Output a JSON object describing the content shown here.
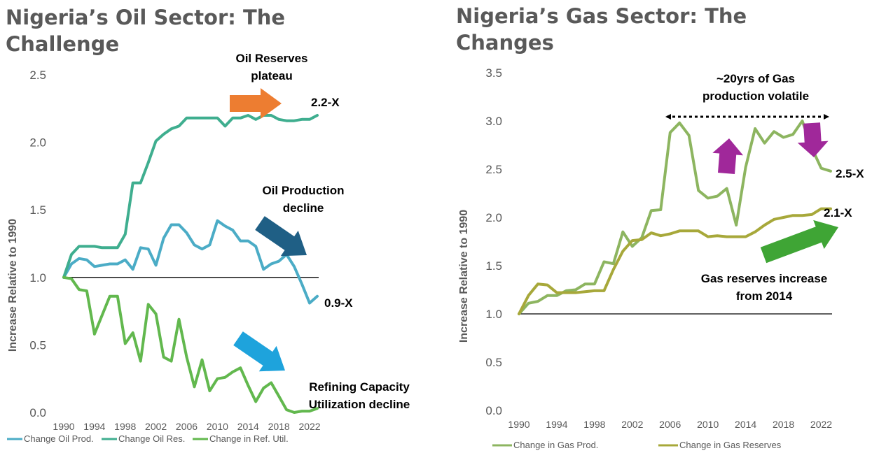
{
  "chart_data": [
    {
      "type": "line",
      "title": "Nigeria’s Oil Sector: The Challenge",
      "xlabel": "",
      "ylabel": "Increase Relative to 1990",
      "ylim": [
        0,
        2.5
      ],
      "xlim": [
        1990,
        2023
      ],
      "y_ticks": [
        "0.0",
        "0.5",
        "1.0",
        "1.5",
        "2.0",
        "2.5"
      ],
      "x_ticks": [
        "1990",
        "1994",
        "1998",
        "2002",
        "2006",
        "2010",
        "2014",
        "2018",
        "2022"
      ],
      "reference_line": 1.0,
      "grid": false,
      "legend_position": "bottom",
      "x": [
        1990,
        1991,
        1992,
        1993,
        1994,
        1995,
        1996,
        1997,
        1998,
        1999,
        2000,
        2001,
        2002,
        2003,
        2004,
        2005,
        2006,
        2007,
        2008,
        2009,
        2010,
        2011,
        2012,
        2013,
        2014,
        2015,
        2016,
        2017,
        2018,
        2019,
        2020,
        2021,
        2022,
        2023
      ],
      "series": [
        {
          "name": "Change Oil Prod.",
          "color": "#4bacc6",
          "values": [
            1.0,
            1.1,
            1.14,
            1.13,
            1.08,
            1.09,
            1.1,
            1.1,
            1.13,
            1.06,
            1.22,
            1.21,
            1.09,
            1.29,
            1.39,
            1.39,
            1.33,
            1.24,
            1.21,
            1.24,
            1.42,
            1.38,
            1.35,
            1.27,
            1.27,
            1.23,
            1.06,
            1.1,
            1.12,
            1.17,
            1.08,
            0.95,
            0.81,
            0.86
          ]
        },
        {
          "name": "Change Oil Res.",
          "color": "#3fae8f",
          "values": [
            1.0,
            1.17,
            1.23,
            1.23,
            1.23,
            1.22,
            1.22,
            1.22,
            1.32,
            1.7,
            1.7,
            1.85,
            2.01,
            2.06,
            2.1,
            2.12,
            2.18,
            2.18,
            2.18,
            2.18,
            2.18,
            2.12,
            2.18,
            2.18,
            2.2,
            2.17,
            2.2,
            2.2,
            2.17,
            2.16,
            2.16,
            2.17,
            2.17,
            2.2
          ]
        },
        {
          "name": "Change in Ref. Util.",
          "color": "#62b84e",
          "values": [
            1.0,
            0.99,
            0.91,
            0.9,
            0.58,
            0.72,
            0.86,
            0.86,
            0.51,
            0.59,
            0.38,
            0.8,
            0.73,
            0.41,
            0.38,
            0.69,
            0.41,
            0.19,
            0.39,
            0.16,
            0.25,
            0.26,
            0.3,
            0.33,
            0.2,
            0.08,
            0.18,
            0.22,
            0.12,
            0.02,
            0.0,
            0.01,
            0.01,
            0.03
          ]
        }
      ],
      "annotations": [
        {
          "lines": [
            "Oil Reserves",
            "plateau"
          ]
        },
        {
          "lines": [
            "2.2-X"
          ]
        },
        {
          "lines": [
            "Oil Production",
            "decline"
          ]
        },
        {
          "lines": [
            "0.9-X"
          ]
        },
        {
          "lines": [
            "Refining Capacity",
            "Utilization decline"
          ]
        }
      ],
      "arrow_colors": {
        "reserves": "#ed7d31",
        "production": "#1f5f85",
        "refining": "#1ea3dc"
      }
    },
    {
      "type": "line",
      "title": "Nigeria’s Gas Sector: The Changes",
      "xlabel": "",
      "ylabel": "Increase Relative to 1990",
      "ylim": [
        0,
        3.5
      ],
      "xlim": [
        1990,
        2023
      ],
      "y_ticks": [
        "0.0",
        "0.5",
        "1.0",
        "1.5",
        "2.0",
        "2.5",
        "3.0",
        "3.5"
      ],
      "x_ticks": [
        "1990",
        "1994",
        "1998",
        "2002",
        "2006",
        "2010",
        "2014",
        "2018",
        "2022"
      ],
      "reference_line": 1.0,
      "grid": false,
      "legend_position": "bottom",
      "x": [
        1990,
        1991,
        1992,
        1993,
        1994,
        1995,
        1996,
        1997,
        1998,
        1999,
        2000,
        2001,
        2002,
        2003,
        2004,
        2005,
        2006,
        2007,
        2008,
        2009,
        2010,
        2011,
        2012,
        2013,
        2014,
        2015,
        2016,
        2017,
        2018,
        2019,
        2020,
        2021,
        2022,
        2023
      ],
      "series": [
        {
          "name": "Change in Gas Prod.",
          "color": "#8db560",
          "values": [
            1.0,
            1.11,
            1.13,
            1.19,
            1.19,
            1.24,
            1.25,
            1.31,
            1.31,
            1.54,
            1.52,
            1.85,
            1.7,
            1.79,
            2.07,
            2.08,
            2.88,
            2.98,
            2.85,
            2.28,
            2.2,
            2.22,
            2.3,
            1.92,
            2.52,
            2.92,
            2.77,
            2.89,
            2.83,
            2.86,
            3.0,
            2.72,
            2.51,
            2.48
          ]
        },
        {
          "name": "Change in Gas Reserves",
          "color": "#a7a83a",
          "values": [
            1.0,
            1.19,
            1.31,
            1.3,
            1.22,
            1.22,
            1.22,
            1.23,
            1.24,
            1.24,
            1.46,
            1.65,
            1.76,
            1.77,
            1.84,
            1.81,
            1.83,
            1.86,
            1.86,
            1.86,
            1.8,
            1.81,
            1.8,
            1.8,
            1.8,
            1.85,
            1.92,
            1.98,
            2.0,
            2.02,
            2.02,
            2.03,
            2.09,
            2.09
          ]
        }
      ],
      "annotations": [
        {
          "lines": [
            "~20yrs of Gas",
            "production volatile"
          ]
        },
        {
          "lines": [
            "2.5-X"
          ]
        },
        {
          "lines": [
            "2.1-X"
          ]
        },
        {
          "lines": [
            "Gas reserves increase",
            "from 2014"
          ]
        }
      ],
      "arrow_colors": {
        "volatility": "#a0289a",
        "reserves": "#3fa535",
        "span": "#000000"
      }
    }
  ]
}
